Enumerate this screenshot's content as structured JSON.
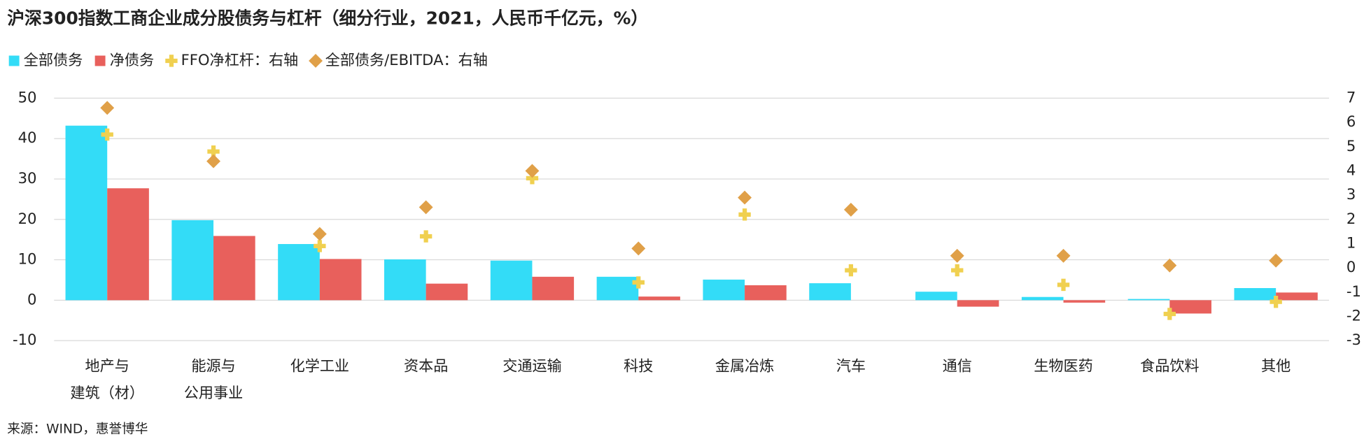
{
  "chart_data": {
    "type": "bar-scatter",
    "title": "沪深300指数工商企业成分股债务与杠杆（细分行业，2021，人民币千亿元，%）",
    "source": "来源：WIND，惠誉博华",
    "categories": [
      [
        "地产与",
        "建筑（材）"
      ],
      [
        "能源与",
        "公用事业"
      ],
      [
        "化学工业"
      ],
      [
        "资本品"
      ],
      [
        "交通运输"
      ],
      [
        "科技"
      ],
      [
        "金属冶炼"
      ],
      [
        "汽车"
      ],
      [
        "通信"
      ],
      [
        "生物医药"
      ],
      [
        "食品饮料"
      ],
      [
        "其他"
      ]
    ],
    "series": [
      {
        "name": "全部债务",
        "type": "bar",
        "color": "#33dcf7",
        "values": [
          43.2,
          19.8,
          13.9,
          10.1,
          9.8,
          5.8,
          5.1,
          4.2,
          2.1,
          0.8,
          0.3,
          3.0
        ]
      },
      {
        "name": "净债务",
        "type": "bar",
        "color": "#e8605c",
        "values": [
          27.7,
          15.9,
          10.2,
          4.1,
          5.8,
          0.9,
          3.7,
          null,
          -1.6,
          -0.6,
          -3.3,
          1.9
        ]
      },
      {
        "name": "FFO净杠杆：右轴",
        "type": "plus",
        "axis": "y2",
        "color": "#f0d050",
        "values": [
          5.5,
          4.8,
          0.9,
          1.3,
          3.7,
          -0.6,
          2.2,
          -0.1,
          -0.1,
          -0.7,
          -1.9,
          -1.4
        ]
      },
      {
        "name": "全部债务/EBITDA：右轴",
        "type": "diamond",
        "axis": "y2",
        "color": "#e0a048",
        "values": [
          6.6,
          4.4,
          1.4,
          2.5,
          4.0,
          0.8,
          2.9,
          2.4,
          0.5,
          0.5,
          0.1,
          0.3
        ]
      }
    ],
    "ylim": [
      -10,
      50
    ],
    "yticks": [
      -10,
      0,
      10,
      20,
      30,
      40,
      50
    ],
    "y2lim": [
      -3,
      7
    ],
    "y2ticks": [
      -3,
      -2,
      -1,
      0,
      1,
      2,
      3,
      4,
      5,
      6,
      7
    ],
    "grid": true
  }
}
